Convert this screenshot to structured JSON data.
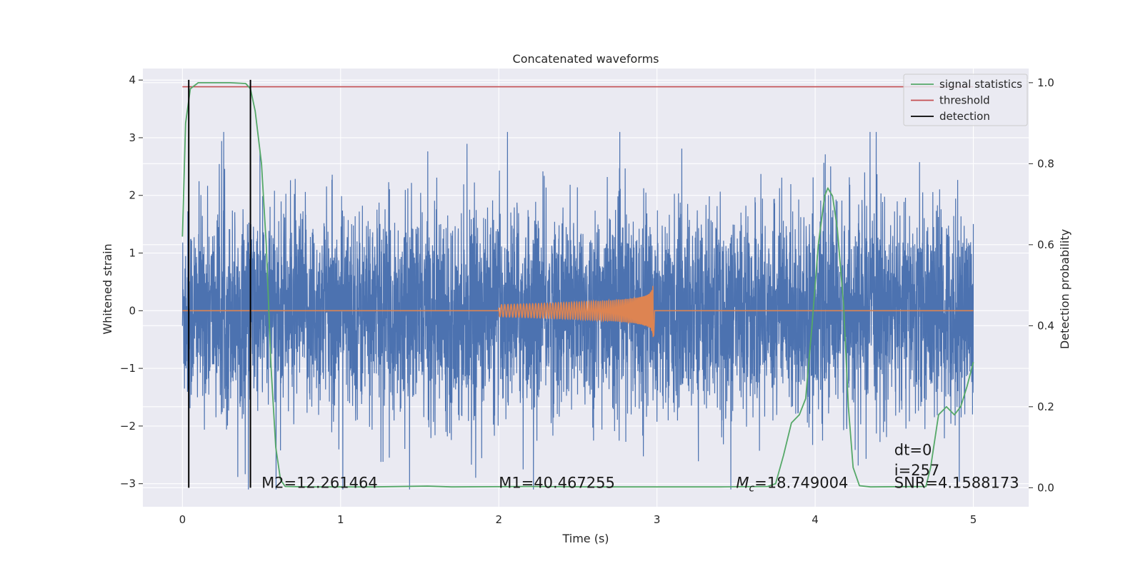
{
  "chart_data": {
    "type": "line",
    "title": "Concatenated waveforms",
    "xlabel": "Time (s)",
    "ylabel": "Whitened strain",
    "y2label": "Detection probability",
    "xlim": [
      -0.25,
      5.35
    ],
    "ylim": [
      -3.4,
      4.2
    ],
    "y2lim": [
      -0.047,
      1.035
    ],
    "xticks": [
      0,
      1,
      2,
      3,
      4,
      5
    ],
    "xtick_labels": [
      "0",
      "1",
      "2",
      "3",
      "4",
      "5"
    ],
    "yticks": [
      -3,
      -2,
      -1,
      0,
      1,
      2,
      3,
      4
    ],
    "ytick_labels": [
      "−3",
      "−2",
      "−1",
      "0",
      "1",
      "2",
      "3",
      "4"
    ],
    "y2ticks": [
      0.0,
      0.2,
      0.4,
      0.6,
      0.8,
      1.0
    ],
    "y2tick_labels": [
      "0.0",
      "0.2",
      "0.4",
      "0.6",
      "0.8",
      "1.0"
    ],
    "grid": true,
    "legend_position": "top-right",
    "colors": {
      "background": "#eaeaf2",
      "grid": "#ffffff",
      "strain": "#4c72b0",
      "template": "#dd8452",
      "statistics": "#55a868",
      "threshold": "#c44e52",
      "detection": "#000000"
    },
    "legend": [
      {
        "label": "signal statistics",
        "color": "#55a868"
      },
      {
        "label": "threshold",
        "color": "#c44e52"
      },
      {
        "label": "detection",
        "color": "#000000"
      }
    ],
    "strain_noise": {
      "description_visible": "whitened noise strain (blue)",
      "t_start": 0.0,
      "t_end": 5.0,
      "typical_range": [
        -2.5,
        3.0
      ],
      "extremes": [
        -3.1,
        3.1
      ]
    },
    "template_chirp": {
      "t_start": 2.0,
      "t_merger": 2.98,
      "peak_amplitude": 0.75,
      "baseline": 0.0
    },
    "signal_statistics": {
      "axis": "right",
      "points": [
        [
          0.0,
          0.62
        ],
        [
          0.02,
          0.9
        ],
        [
          0.05,
          0.985
        ],
        [
          0.1,
          1.0
        ],
        [
          0.2,
          1.0
        ],
        [
          0.3,
          1.0
        ],
        [
          0.4,
          0.998
        ],
        [
          0.43,
          0.985
        ],
        [
          0.46,
          0.93
        ],
        [
          0.5,
          0.8
        ],
        [
          0.53,
          0.6
        ],
        [
          0.56,
          0.3
        ],
        [
          0.59,
          0.1
        ],
        [
          0.62,
          0.02
        ],
        [
          0.65,
          0.003
        ],
        [
          0.8,
          0.002
        ],
        [
          1.2,
          0.002
        ],
        [
          1.55,
          0.004
        ],
        [
          1.7,
          0.002
        ],
        [
          2.2,
          0.003
        ],
        [
          2.6,
          0.002
        ],
        [
          3.0,
          0.002
        ],
        [
          3.4,
          0.002
        ],
        [
          3.7,
          0.003
        ],
        [
          3.75,
          0.01
        ],
        [
          3.8,
          0.08
        ],
        [
          3.85,
          0.16
        ],
        [
          3.9,
          0.18
        ],
        [
          3.94,
          0.22
        ],
        [
          3.98,
          0.4
        ],
        [
          4.02,
          0.6
        ],
        [
          4.06,
          0.72
        ],
        [
          4.08,
          0.74
        ],
        [
          4.11,
          0.72
        ],
        [
          4.14,
          0.64
        ],
        [
          4.18,
          0.45
        ],
        [
          4.21,
          0.2
        ],
        [
          4.24,
          0.05
        ],
        [
          4.28,
          0.005
        ],
        [
          4.35,
          0.002
        ],
        [
          4.7,
          0.003
        ],
        [
          4.73,
          0.05
        ],
        [
          4.78,
          0.18
        ],
        [
          4.83,
          0.2
        ],
        [
          4.88,
          0.18
        ],
        [
          4.92,
          0.2
        ],
        [
          4.96,
          0.25
        ],
        [
          5.0,
          0.31
        ]
      ]
    },
    "threshold": {
      "axis": "right",
      "value": 0.99,
      "x_range": [
        0.0,
        5.0
      ]
    },
    "detections": [
      {
        "t": 0.04,
        "y_range": [
          0.0,
          1.0
        ]
      },
      {
        "t": 0.43,
        "y_range": [
          0.0,
          1.0
        ]
      }
    ],
    "annotations": [
      {
        "text": "M2=12.261464",
        "x": 0.5,
        "y": -3.0
      },
      {
        "text": "M1=40.467255",
        "x": 2.0,
        "y": -3.0
      },
      {
        "text": "=18.749004",
        "x": 3.5,
        "y": -3.0,
        "prefix_italic": "M",
        "prefix_sub": "c"
      },
      {
        "text": "dt=0",
        "x": 4.5,
        "y": -2.43
      },
      {
        "text": "i=257",
        "x": 4.5,
        "y": -2.78
      },
      {
        "text": "SNR=4.1588173",
        "x": 4.5,
        "y": -3.0
      }
    ]
  }
}
